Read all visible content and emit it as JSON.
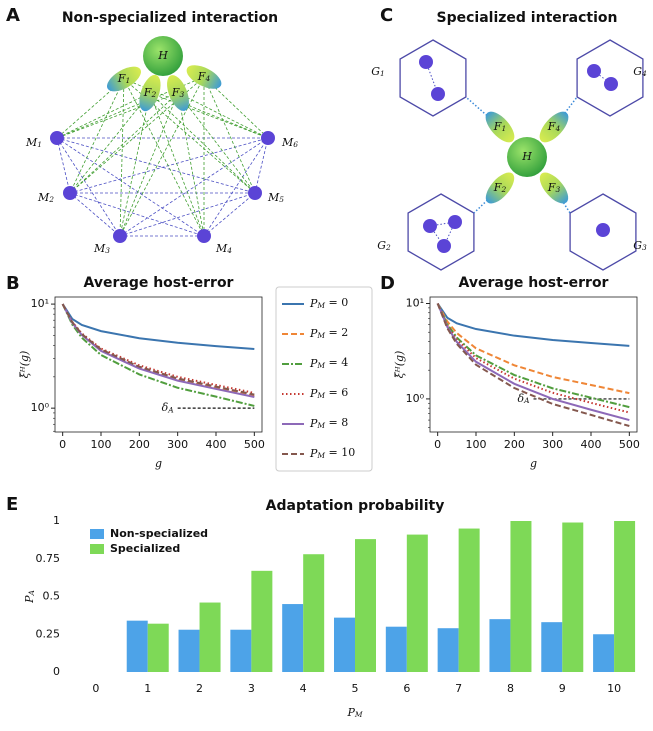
{
  "panel_labels": [
    "A",
    "B",
    "C",
    "D",
    "E"
  ],
  "diagram_a": {
    "title": "Non-specialized interaction",
    "host": "H",
    "feeders": [
      {
        "base": "F",
        "sub": "1"
      },
      {
        "base": "F",
        "sub": "2"
      },
      {
        "base": "F",
        "sub": "3"
      },
      {
        "base": "F",
        "sub": "4"
      }
    ],
    "members": [
      {
        "base": "M",
        "sub": "1"
      },
      {
        "base": "M",
        "sub": "2"
      },
      {
        "base": "M",
        "sub": "3"
      },
      {
        "base": "M",
        "sub": "4"
      },
      {
        "base": "M",
        "sub": "5"
      },
      {
        "base": "M",
        "sub": "6"
      }
    ]
  },
  "diagram_c": {
    "title": "Specialized interaction",
    "host": "H",
    "feeders": [
      {
        "base": "F",
        "sub": "1"
      },
      {
        "base": "F",
        "sub": "2"
      },
      {
        "base": "F",
        "sub": "3"
      },
      {
        "base": "F",
        "sub": "4"
      }
    ],
    "groups": [
      {
        "base": "G",
        "sub": "1"
      },
      {
        "base": "G",
        "sub": "2"
      },
      {
        "base": "G",
        "sub": "3"
      },
      {
        "base": "G",
        "sub": "4"
      }
    ]
  },
  "chart_data": [
    {
      "type": "line",
      "title": "Average host-error",
      "xlabel": "g",
      "ylabel": "ξ̄ᴴ(g)",
      "log_y": true,
      "xlim": [
        -20,
        520
      ],
      "xticks": [
        0,
        100,
        200,
        300,
        400,
        500
      ],
      "ylim": [
        0.59,
        11.7
      ],
      "yticks": [
        {
          "value": 1,
          "label": "10⁰"
        },
        {
          "value": 10,
          "label": "10¹"
        }
      ],
      "legend": "outside right",
      "x": [
        0,
        25,
        50,
        100,
        200,
        300,
        400,
        500
      ],
      "series": [
        {
          "name": {
            "base": "P",
            "sub": "M",
            "tail": " = 0"
          },
          "color": "#3b75af",
          "dash": "solid",
          "values": [
            10,
            7.2,
            6.3,
            5.5,
            4.7,
            4.25,
            3.95,
            3.7
          ]
        },
        {
          "name": {
            "base": "P",
            "sub": "M",
            "tail": " = 2"
          },
          "color": "#ef8636",
          "dash": "dashed",
          "values": [
            10,
            6.65,
            5.1,
            3.6,
            2.45,
            1.87,
            1.56,
            1.3
          ]
        },
        {
          "name": {
            "base": "P",
            "sub": "M",
            "tail": " = 4"
          },
          "color": "#519e3e",
          "dash": "dashdot",
          "values": [
            10,
            6.37,
            4.75,
            3.24,
            2.11,
            1.57,
            1.29,
            1.05
          ]
        },
        {
          "name": {
            "base": "P",
            "sub": "M",
            "tail": " = 6"
          },
          "color": "#c53932",
          "dash": "dotted",
          "values": [
            10,
            6.75,
            5.22,
            3.74,
            2.58,
            2.0,
            1.67,
            1.4
          ]
        },
        {
          "name": {
            "base": "P",
            "sub": "M",
            "tail": " = 8"
          },
          "color": "#8d69b8",
          "dash": "solid",
          "values": [
            10,
            6.6,
            5.05,
            3.55,
            2.4,
            1.84,
            1.53,
            1.28
          ]
        },
        {
          "name": {
            "base": "P",
            "sub": "M",
            "tail": " = 10"
          },
          "color": "#84584e",
          "dash": "dashed",
          "values": [
            10,
            6.7,
            5.15,
            3.67,
            2.5,
            1.93,
            1.61,
            1.35
          ]
        }
      ],
      "annotation": {
        "label": {
          "base": "δ",
          "sub": "A"
        },
        "y": 1,
        "x": [
          300,
          500
        ]
      }
    },
    {
      "type": "line",
      "title": "Average host-error",
      "xlabel": "g",
      "ylabel": "ξ̄ᴴ(g)",
      "log_y": true,
      "xlim": [
        -20,
        520
      ],
      "xticks": [
        0,
        100,
        200,
        300,
        400,
        500
      ],
      "ylim": [
        0.45,
        11.7
      ],
      "yticks": [
        {
          "value": 1,
          "label": "10⁰"
        },
        {
          "value": 10,
          "label": "10¹"
        }
      ],
      "x": [
        0,
        25,
        50,
        100,
        200,
        300,
        400,
        500
      ],
      "series": [
        {
          "color": "#3b75af",
          "dash": "solid",
          "values": [
            10,
            7.1,
            6.2,
            5.4,
            4.6,
            4.15,
            3.85,
            3.6
          ]
        },
        {
          "color": "#ef8636",
          "dash": "dashed",
          "values": [
            10,
            6.49,
            4.9,
            3.39,
            2.25,
            1.7,
            1.4,
            1.15
          ]
        },
        {
          "color": "#519e3e",
          "dash": "dashdot",
          "values": [
            10,
            6.07,
            4.39,
            2.86,
            1.78,
            1.29,
            1.03,
            0.82
          ]
        },
        {
          "color": "#c53932",
          "dash": "dotted",
          "values": [
            10,
            5.9,
            4.2,
            2.68,
            1.63,
            1.16,
            0.91,
            0.72
          ]
        },
        {
          "color": "#8d69b8",
          "dash": "solid",
          "values": [
            10,
            5.7,
            3.95,
            2.45,
            1.44,
            1.0,
            0.77,
            0.6
          ]
        },
        {
          "color": "#84584e",
          "dash": "dashed",
          "values": [
            10,
            5.53,
            3.77,
            2.28,
            1.3,
            0.885,
            0.68,
            0.52
          ]
        }
      ],
      "annotation": {
        "label": {
          "base": "δ",
          "sub": "A"
        },
        "y": 1,
        "x": [
          250,
          500
        ]
      }
    },
    {
      "type": "bar",
      "title": "Adaptation probability",
      "xlabel": {
        "base": "P",
        "sub": "M"
      },
      "ylabel": {
        "base": "P",
        "sub": "A"
      },
      "categories": [
        "0",
        "1",
        "2",
        "3",
        "4",
        "5",
        "6",
        "7",
        "8",
        "9",
        "10"
      ],
      "ylim": [
        0,
        1
      ],
      "yticks": [
        0,
        0.25,
        0.5,
        0.75,
        1
      ],
      "legend": "upper left",
      "series": [
        {
          "name": "Non-specialized",
          "color": "#4da3e8",
          "values": [
            0,
            0.34,
            0.28,
            0.28,
            0.45,
            0.36,
            0.3,
            0.29,
            0.35,
            0.33,
            0.25
          ]
        },
        {
          "name": "Specialized",
          "color": "#7ed957",
          "values": [
            0,
            0.32,
            0.46,
            0.67,
            0.78,
            0.88,
            0.91,
            0.95,
            1,
            0.99,
            1
          ]
        }
      ]
    }
  ]
}
